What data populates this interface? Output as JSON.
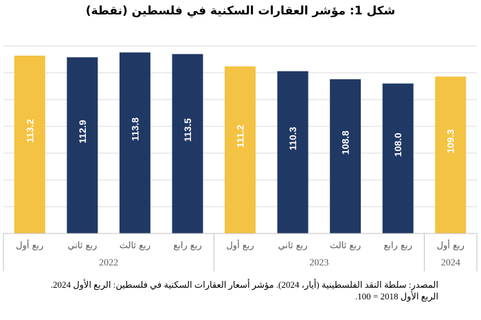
{
  "chart_data": {
    "type": "bar",
    "title": "شكل 1: مؤشر العقارات السكنية في فلسطين (نقطة)",
    "categories": [
      "ربع أول",
      "ربع ثاني",
      "ربع ثالث",
      "ربع رابع",
      "ربع أول",
      "ربع ثاني",
      "ربع ثالث",
      "ربع رابع",
      "ربع أول"
    ],
    "groups": [
      {
        "label": "2022",
        "count": 4
      },
      {
        "label": "2023",
        "count": 4
      },
      {
        "label": "2024",
        "count": 1
      }
    ],
    "values": [
      113.2,
      112.9,
      113.8,
      113.5,
      111.2,
      110.3,
      108.8,
      108.0,
      109.3
    ],
    "data_labels": [
      "113.2",
      "112.9",
      "113.8",
      "113.5",
      "111.2",
      "110.3",
      "108.8",
      "108.0",
      "109.3"
    ],
    "highlight": [
      true,
      false,
      false,
      false,
      true,
      false,
      false,
      false,
      true
    ],
    "ylim": [
      80,
      115
    ],
    "grid": true,
    "colors": {
      "highlight": "#F4C343",
      "normal": "#203864",
      "grid": "#d9d9d9",
      "highlight_label": "#ffffff",
      "normal_label": "#ffffff"
    }
  },
  "footnote": {
    "source": "المصدر: سلطة النقد الفلسطينية (أيار، 2024). مؤشر أسعار العقارات السكنية في فلسطين: الربع الأول 2024.",
    "base": "الربع الأول 2018 = 100."
  }
}
